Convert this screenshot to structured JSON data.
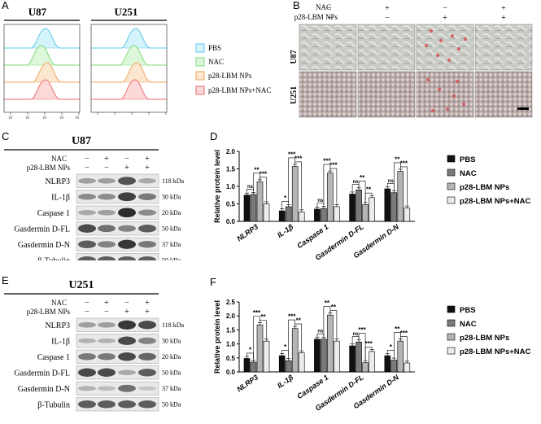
{
  "panels": {
    "a": "A",
    "b": "B",
    "c": "C",
    "d": "D",
    "e": "E",
    "f": "F"
  },
  "flow": {
    "titles": [
      "U87",
      "U251"
    ],
    "tick_labels": [
      "10",
      "10",
      "10",
      "10",
      "10"
    ],
    "legend": [
      {
        "label": "PBS",
        "color": "#5bc8e8"
      },
      {
        "label": "NAC",
        "color": "#7fd97a"
      },
      {
        "label": "p28-LBM NPs",
        "color": "#f0a65a"
      },
      {
        "label": "p28-LBM NPs+NAC",
        "color": "#ee6b6b"
      }
    ]
  },
  "micro": {
    "row_headers": [
      "NAC",
      "p28-LBM NPs"
    ],
    "signs": {
      "nac": [
        "−",
        "+",
        "−",
        "+"
      ],
      "lbm": [
        "−",
        "−",
        "+",
        "+"
      ]
    },
    "rows": [
      "U87",
      "U251"
    ]
  },
  "western_c": {
    "title": "U87",
    "header_labels": [
      "NAC",
      "p28-LBM NPs"
    ],
    "nac": [
      "−",
      "+",
      "−",
      "+"
    ],
    "lbm": [
      "−",
      "−",
      "+",
      "+"
    ],
    "proteins": [
      "NLRP3",
      "IL-1β",
      "Caspase 1",
      "Gasdermin D-FL",
      "Gasdermin D-N",
      "β-Tubulin"
    ],
    "sizes": [
      "118 kDa",
      "30 kDa",
      "20 kDa",
      "50 kDa",
      "37 kDa",
      "50 kDa"
    ],
    "intensity": [
      [
        0.35,
        0.35,
        0.75,
        0.3
      ],
      [
        0.45,
        0.45,
        0.85,
        0.55
      ],
      [
        0.3,
        0.35,
        0.95,
        0.45
      ],
      [
        0.8,
        0.6,
        0.5,
        0.7
      ],
      [
        0.7,
        0.5,
        0.9,
        0.55
      ],
      [
        0.7,
        0.7,
        0.7,
        0.7
      ]
    ]
  },
  "western_e": {
    "title": "U251",
    "header_labels": [
      "NAC",
      "p28-LBM NPs"
    ],
    "nac": [
      "−",
      "+",
      "−",
      "+"
    ],
    "lbm": [
      "−",
      "−",
      "+",
      "+"
    ],
    "proteins": [
      "NLRP3",
      "IL-1β",
      "Caspase 1",
      "Gasdermin D-FL",
      "Gasdermin D-N",
      "β-Tubulin"
    ],
    "sizes": [
      "118 kDa",
      "30 kDa",
      "20 kDa",
      "50 kDa",
      "37 kDa",
      "50 kDa"
    ],
    "intensity": [
      [
        0.35,
        0.35,
        0.9,
        0.8
      ],
      [
        0.25,
        0.25,
        0.8,
        0.5
      ],
      [
        0.55,
        0.55,
        0.8,
        0.65
      ],
      [
        0.8,
        0.8,
        0.3,
        0.7
      ],
      [
        0.25,
        0.2,
        0.6,
        0.15
      ],
      [
        0.7,
        0.7,
        0.7,
        0.7
      ]
    ]
  },
  "chart_data": [
    {
      "type": "bar",
      "panel": "D",
      "ylabel": "Relative protein level",
      "ylim": [
        0,
        2.0
      ],
      "yticks": [
        "0.0",
        "0.5",
        "1.0",
        "1.5",
        "2.0"
      ],
      "categories": [
        "NLRP3",
        "IL-1β",
        "Caspase 1",
        "Gasdermin D-FL",
        "Gasdermin D-N"
      ],
      "series": [
        {
          "name": "PBS",
          "color": "#111111",
          "values": [
            0.75,
            0.3,
            0.35,
            0.78,
            0.93
          ]
        },
        {
          "name": "NAC",
          "color": "#7a7a7a",
          "values": [
            0.77,
            0.42,
            0.37,
            0.9,
            0.82
          ]
        },
        {
          "name": "p28-LBM NPs",
          "color": "#b5b5b5",
          "values": [
            1.13,
            1.57,
            1.38,
            0.48,
            1.43
          ]
        },
        {
          "name": "p28-LBM NPs+NAC",
          "color": "#ececec",
          "values": [
            0.5,
            0.27,
            0.42,
            0.68,
            0.38
          ]
        }
      ],
      "annotations": [
        [
          "ns",
          "**",
          "***"
        ],
        [
          "*",
          "***",
          "***"
        ],
        [
          "ns",
          "***",
          "***"
        ],
        [
          "ns",
          "**",
          "**"
        ],
        [
          "ns",
          "**",
          "***"
        ]
      ]
    },
    {
      "type": "bar",
      "panel": "F",
      "ylabel": "Relative protein level",
      "ylim": [
        0,
        2.5
      ],
      "yticks": [
        "0.0",
        "0.5",
        "1.0",
        "1.5",
        "2.0",
        "2.5"
      ],
      "categories": [
        "NLRP3",
        "IL-1β",
        "Caspase 1",
        "Gasdermin D-FL",
        "Gasdermin D-N"
      ],
      "series": [
        {
          "name": "PBS",
          "color": "#111111",
          "values": [
            0.48,
            0.58,
            1.17,
            0.93,
            0.58
          ]
        },
        {
          "name": "NAC",
          "color": "#7a7a7a",
          "values": [
            0.35,
            0.4,
            1.17,
            1.07,
            0.42
          ]
        },
        {
          "name": "p28-LBM NPs",
          "color": "#b5b5b5",
          "values": [
            1.68,
            1.55,
            2.03,
            0.33,
            1.1
          ]
        },
        {
          "name": "p28-LBM NPs+NAC",
          "color": "#ececec",
          "values": [
            1.1,
            0.68,
            1.1,
            0.73,
            0.32
          ]
        }
      ],
      "annotations": [
        [
          "*",
          "***",
          "**"
        ],
        [
          "*",
          "***",
          "**"
        ],
        [
          "ns",
          "**",
          "**"
        ],
        [
          "ns",
          "***",
          "***"
        ],
        [
          "*",
          "**",
          "***"
        ]
      ]
    }
  ]
}
